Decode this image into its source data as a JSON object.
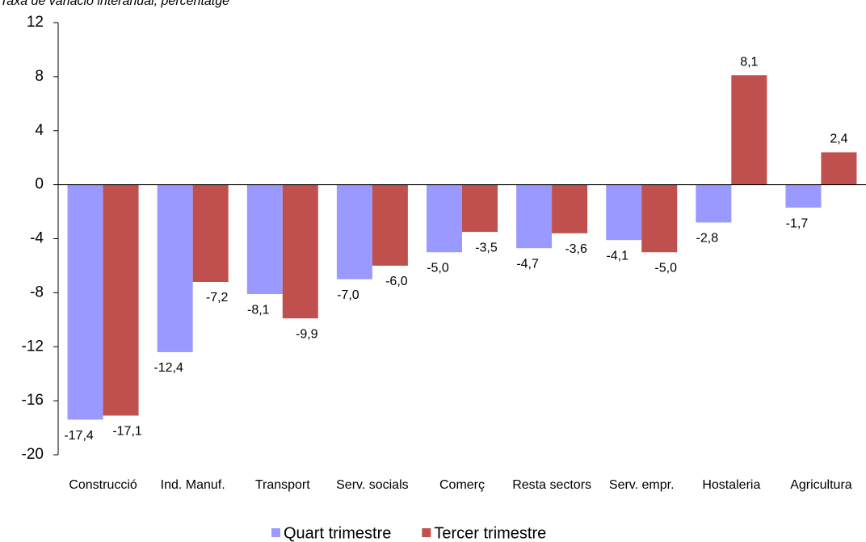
{
  "chart_data": {
    "type": "bar",
    "subtitle": "Taxa de variació interanual, percentatge",
    "categories": [
      "Construcció",
      "Ind. Manuf.",
      "Transport",
      "Serv. socials",
      "Comerç",
      "Resta sectors",
      "Serv. empr.",
      "Hostaleria",
      "Agricultura"
    ],
    "series": [
      {
        "name": "Quart trimestre",
        "color": "#9999ff",
        "values": [
          -17.4,
          -12.4,
          -8.1,
          -7.0,
          -5.0,
          -4.7,
          -4.1,
          -2.8,
          -1.7
        ],
        "value_labels": [
          "-17,4",
          "-12,4",
          "-8,1",
          "-7,0",
          "-5,0",
          "-4,7",
          "-4,1",
          "-2,8",
          "-1,7"
        ]
      },
      {
        "name": "Tercer trimestre",
        "color": "#c0504d",
        "values": [
          -17.1,
          -7.2,
          -9.9,
          -6.0,
          -3.5,
          -3.6,
          -5.0,
          8.1,
          2.4
        ],
        "value_labels": [
          "-17,1",
          "-7,2",
          "-9,9",
          "-6,0",
          "-3,5",
          "-3,6",
          "-5,0",
          "8,1",
          "2,4"
        ]
      }
    ],
    "ylim": [
      -20,
      12
    ],
    "yticks": [
      -20,
      -16,
      -12,
      -8,
      -4,
      0,
      4,
      8,
      12
    ],
    "grid": false,
    "legend": "bottom"
  }
}
